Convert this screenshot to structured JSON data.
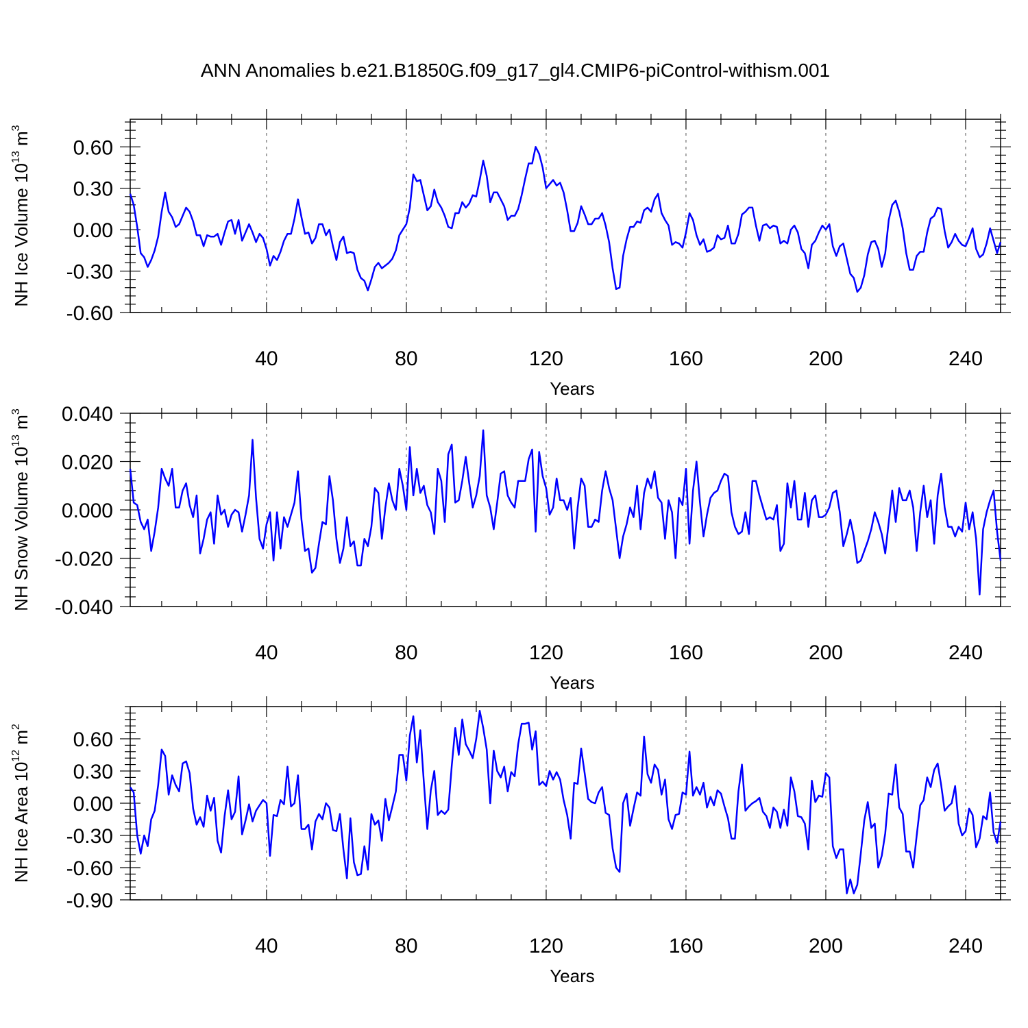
{
  "title": "ANN Anomalies b.e21.B1850G.f09_g17_gl4.CMIP6-piControl-withism.001",
  "line_color": "#0000ff",
  "chart_data": [
    {
      "type": "line",
      "ylabel": "NH Ice Volume 10",
      "ylabel_exp": "13",
      "ylabel_unit": " m",
      "ylabel_unit_exp": "3",
      "xlabel": "Years",
      "xlim": [
        1,
        250
      ],
      "ylim": [
        -0.6,
        0.8
      ],
      "xticks": [
        40,
        80,
        120,
        160,
        200,
        240
      ],
      "xtick_labels": [
        "40",
        "80",
        "120",
        "160",
        "200",
        "240"
      ],
      "yticks": [
        -0.6,
        -0.3,
        0.0,
        0.3,
        0.6
      ],
      "ytick_labels": [
        "-0.60",
        "-0.30",
        "0.00",
        "0.30",
        "0.60"
      ],
      "grid": "dashed vertical lines at x ticks",
      "series": [
        {
          "values": [
            0.26,
            0.18,
            0.02,
            -0.17,
            -0.2,
            -0.27,
            -0.22,
            -0.15,
            -0.05,
            0.13,
            0.27,
            0.13,
            0.09,
            0.02,
            0.04,
            0.1,
            0.16,
            0.13,
            0.06,
            -0.04,
            -0.04,
            -0.12,
            -0.04,
            -0.05,
            -0.05,
            -0.03,
            -0.11,
            -0.02,
            0.06,
            0.07,
            -0.03,
            0.07,
            -0.08,
            -0.02,
            0.04,
            -0.02,
            -0.09,
            -0.03,
            -0.06,
            -0.14,
            -0.26,
            -0.19,
            -0.22,
            -0.16,
            -0.08,
            -0.03,
            -0.03,
            0.08,
            0.22,
            0.09,
            -0.03,
            -0.02,
            -0.1,
            -0.06,
            0.04,
            0.04,
            -0.04,
            0.0,
            -0.12,
            -0.22,
            -0.09,
            -0.05,
            -0.17,
            -0.16,
            -0.17,
            -0.29,
            -0.35,
            -0.37,
            -0.44,
            -0.36,
            -0.27,
            -0.24,
            -0.28,
            -0.26,
            -0.24,
            -0.21,
            -0.15,
            -0.04,
            0.0,
            0.04,
            0.16,
            0.4,
            0.35,
            0.36,
            0.25,
            0.14,
            0.17,
            0.29,
            0.2,
            0.16,
            0.1,
            0.02,
            0.01,
            0.12,
            0.12,
            0.2,
            0.16,
            0.19,
            0.25,
            0.24,
            0.36,
            0.5,
            0.39,
            0.2,
            0.27,
            0.27,
            0.22,
            0.17,
            0.07,
            0.1,
            0.1,
            0.15,
            0.25,
            0.37,
            0.48,
            0.48,
            0.6,
            0.55,
            0.45,
            0.3,
            0.33,
            0.36,
            0.32,
            0.34,
            0.27,
            0.14,
            -0.01,
            -0.01,
            0.05,
            0.17,
            0.11,
            0.04,
            0.04,
            0.08,
            0.08,
            0.12,
            0.03,
            -0.09,
            -0.28,
            -0.43,
            -0.42,
            -0.19,
            -0.07,
            0.02,
            0.02,
            0.06,
            0.05,
            0.14,
            0.16,
            0.13,
            0.22,
            0.26,
            0.12,
            0.07,
            0.03,
            -0.11,
            -0.09,
            -0.1,
            -0.13,
            -0.02,
            0.12,
            0.07,
            -0.04,
            -0.11,
            -0.07,
            -0.16,
            -0.15,
            -0.13,
            -0.04,
            -0.07,
            -0.06,
            0.03,
            -0.1,
            -0.1,
            -0.03,
            0.11,
            0.13,
            0.16,
            0.16,
            0.03,
            -0.08,
            0.03,
            0.04,
            0.01,
            0.03,
            0.02,
            -0.1,
            -0.08,
            -0.1,
            0.0,
            0.03,
            -0.02,
            -0.14,
            -0.17,
            -0.28,
            -0.11,
            -0.08,
            -0.02,
            0.03,
            0.0,
            0.04,
            -0.12,
            -0.19,
            -0.12,
            -0.1,
            -0.21,
            -0.32,
            -0.35,
            -0.45,
            -0.42,
            -0.33,
            -0.18,
            -0.09,
            -0.08,
            -0.14,
            -0.27,
            -0.17,
            0.07,
            0.18,
            0.21,
            0.13,
            0.01,
            -0.17,
            -0.29,
            -0.29,
            -0.19,
            -0.16,
            -0.16,
            -0.02,
            0.08,
            0.1,
            0.16,
            0.15,
            -0.01,
            -0.13,
            -0.09,
            -0.03,
            -0.08,
            -0.11,
            -0.12,
            -0.06,
            0.01,
            -0.14,
            -0.2,
            -0.18,
            -0.1,
            0.01,
            -0.08,
            -0.17,
            -0.09
          ]
        }
      ]
    },
    {
      "type": "line",
      "ylabel": "NH Snow Volume 10",
      "ylabel_exp": "13",
      "ylabel_unit": " m",
      "ylabel_unit_exp": "3",
      "xlabel": "Years",
      "xlim": [
        1,
        250
      ],
      "ylim": [
        -0.04,
        0.04
      ],
      "xticks": [
        40,
        80,
        120,
        160,
        200,
        240
      ],
      "xtick_labels": [
        "40",
        "80",
        "120",
        "160",
        "200",
        "240"
      ],
      "yticks": [
        -0.04,
        -0.02,
        0.0,
        0.02,
        0.04
      ],
      "ytick_labels": [
        "-0.040",
        "-0.020",
        "0.000",
        "0.020",
        "0.040"
      ],
      "grid": "dashed vertical lines at x ticks",
      "series": [
        {
          "values": [
            0.017,
            0.003,
            0.002,
            -0.005,
            -0.008,
            -0.004,
            -0.017,
            -0.009,
            0.001,
            0.017,
            0.013,
            0.01,
            0.017,
            0.001,
            0.001,
            0.008,
            0.011,
            0.002,
            -0.003,
            0.006,
            -0.018,
            -0.012,
            -0.004,
            -0.001,
            -0.014,
            0.006,
            -0.002,
            0.0,
            -0.007,
            -0.002,
            0.0,
            -0.001,
            -0.009,
            -0.002,
            0.006,
            0.029,
            0.005,
            -0.012,
            -0.016,
            -0.006,
            -0.001,
            -0.021,
            -0.001,
            -0.016,
            -0.003,
            -0.007,
            -0.002,
            0.003,
            0.016,
            -0.004,
            -0.017,
            -0.016,
            -0.026,
            -0.024,
            -0.014,
            -0.005,
            -0.006,
            0.014,
            0.004,
            -0.012,
            -0.022,
            -0.016,
            -0.003,
            -0.015,
            -0.013,
            -0.023,
            -0.023,
            -0.012,
            -0.015,
            -0.007,
            0.009,
            0.007,
            -0.012,
            0.001,
            0.011,
            0.004,
            0.0,
            0.017,
            0.01,
            0.0,
            0.026,
            0.006,
            0.017,
            0.007,
            0.01,
            0.002,
            -0.001,
            -0.01,
            0.017,
            0.012,
            -0.005,
            0.023,
            0.027,
            0.003,
            0.004,
            0.012,
            0.022,
            0.011,
            0.001,
            0.006,
            0.014,
            0.033,
            0.006,
            0.001,
            -0.008,
            0.003,
            0.015,
            0.016,
            0.006,
            0.003,
            0.001,
            0.012,
            0.012,
            0.012,
            0.021,
            0.025,
            -0.009,
            0.024,
            0.014,
            0.009,
            -0.002,
            0.001,
            0.013,
            0.004,
            0.004,
            0.0,
            0.005,
            -0.016,
            0.001,
            0.013,
            0.01,
            -0.007,
            -0.007,
            -0.004,
            -0.005,
            0.008,
            0.016,
            0.009,
            0.004,
            -0.008,
            -0.02,
            -0.011,
            -0.006,
            0.001,
            -0.003,
            0.01,
            -0.008,
            0.007,
            0.013,
            0.009,
            0.016,
            0.005,
            0.003,
            -0.012,
            0.004,
            -0.001,
            -0.02,
            0.005,
            0.002,
            0.017,
            -0.014,
            0.008,
            0.02,
            0.003,
            -0.011,
            -0.002,
            0.005,
            0.007,
            0.008,
            0.012,
            0.015,
            0.014,
            -0.001,
            -0.007,
            -0.01,
            -0.009,
            -0.001,
            -0.01,
            0.012,
            0.012,
            0.006,
            0.001,
            -0.004,
            -0.003,
            -0.004,
            0.002,
            -0.017,
            -0.014,
            0.011,
            0.001,
            0.012,
            -0.004,
            -0.004,
            0.007,
            -0.007,
            0.004,
            0.006,
            -0.003,
            -0.003,
            -0.002,
            0.001,
            0.007,
            0.008,
            -0.001,
            -0.015,
            -0.01,
            -0.004,
            -0.011,
            -0.022,
            -0.021,
            -0.017,
            -0.013,
            -0.008,
            -0.001,
            -0.005,
            -0.01,
            -0.018,
            -0.005,
            0.008,
            -0.005,
            0.009,
            0.004,
            0.004,
            0.008,
            0.001,
            -0.017,
            -0.001,
            0.01,
            -0.003,
            0.004,
            -0.014,
            0.006,
            0.015,
            0.001,
            -0.007,
            -0.007,
            -0.011,
            -0.007,
            -0.009,
            0.003,
            -0.008,
            -0.001,
            -0.012,
            -0.035,
            -0.008,
            -0.001,
            0.004,
            0.008,
            -0.009,
            -0.021
          ]
        }
      ]
    },
    {
      "type": "line",
      "ylabel": "NH Ice Area 10",
      "ylabel_exp": "12",
      "ylabel_unit": " m",
      "ylabel_unit_exp": "2",
      "xlabel": "Years",
      "xlim": [
        1,
        250
      ],
      "ylim": [
        -0.9,
        0.9
      ],
      "xticks": [
        40,
        80,
        120,
        160,
        200,
        240
      ],
      "xtick_labels": [
        "40",
        "80",
        "120",
        "160",
        "200",
        "240"
      ],
      "yticks": [
        -0.9,
        -0.6,
        -0.3,
        0.0,
        0.3,
        0.6
      ],
      "ytick_labels": [
        "-0.90",
        "-0.60",
        "-0.30",
        "0.00",
        "0.30",
        "0.60"
      ],
      "grid": "dashed vertical lines at x ticks",
      "series": [
        {
          "values": [
            0.15,
            0.1,
            -0.3,
            -0.47,
            -0.3,
            -0.4,
            -0.15,
            -0.07,
            0.17,
            0.5,
            0.44,
            0.08,
            0.26,
            0.17,
            0.11,
            0.37,
            0.39,
            0.28,
            -0.05,
            -0.2,
            -0.13,
            -0.22,
            0.07,
            -0.07,
            0.05,
            -0.35,
            -0.46,
            -0.12,
            0.12,
            -0.15,
            -0.08,
            0.25,
            -0.29,
            -0.16,
            -0.01,
            -0.17,
            -0.07,
            -0.02,
            0.03,
            0.0,
            -0.49,
            -0.11,
            -0.12,
            0.03,
            -0.01,
            0.34,
            -0.03,
            0.0,
            0.26,
            -0.24,
            -0.24,
            -0.2,
            -0.43,
            -0.17,
            -0.1,
            -0.15,
            0.0,
            -0.04,
            -0.25,
            -0.26,
            -0.1,
            -0.43,
            -0.7,
            -0.14,
            -0.55,
            -0.67,
            -0.66,
            -0.4,
            -0.62,
            -0.1,
            -0.2,
            -0.16,
            -0.35,
            0.04,
            -0.16,
            -0.03,
            0.11,
            0.45,
            0.45,
            0.21,
            0.63,
            0.81,
            0.38,
            0.68,
            0.2,
            -0.24,
            0.12,
            0.3,
            -0.11,
            -0.07,
            -0.1,
            -0.06,
            0.35,
            0.7,
            0.45,
            0.78,
            0.55,
            0.49,
            0.42,
            0.6,
            0.86,
            0.7,
            0.5,
            0.0,
            0.49,
            0.3,
            0.24,
            0.34,
            0.11,
            0.29,
            0.25,
            0.55,
            0.74,
            0.74,
            0.75,
            0.5,
            0.67,
            0.17,
            0.2,
            0.16,
            0.3,
            0.22,
            0.29,
            0.22,
            0.03,
            -0.11,
            -0.33,
            0.19,
            0.18,
            0.51,
            0.28,
            0.04,
            0.01,
            0.0,
            0.1,
            0.15,
            -0.09,
            -0.11,
            -0.42,
            -0.6,
            -0.64,
            0.0,
            0.09,
            -0.21,
            -0.05,
            0.1,
            0.07,
            0.62,
            0.27,
            0.19,
            0.36,
            0.31,
            0.08,
            0.22,
            -0.15,
            -0.24,
            -0.11,
            -0.1,
            0.1,
            0.08,
            0.48,
            0.07,
            0.15,
            0.08,
            0.19,
            -0.04,
            0.06,
            -0.02,
            0.12,
            0.09,
            -0.03,
            -0.14,
            -0.33,
            -0.33,
            0.11,
            0.36,
            -0.07,
            -0.03,
            0.0,
            0.02,
            0.05,
            -0.08,
            -0.12,
            -0.23,
            -0.04,
            -0.08,
            -0.23,
            -0.06,
            -0.21,
            0.24,
            0.11,
            -0.12,
            -0.13,
            -0.19,
            -0.43,
            0.21,
            0.01,
            0.07,
            0.06,
            0.28,
            0.24,
            -0.4,
            -0.51,
            -0.43,
            -0.43,
            -0.84,
            -0.71,
            -0.84,
            -0.76,
            -0.47,
            -0.16,
            0.01,
            -0.23,
            -0.19,
            -0.6,
            -0.49,
            -0.28,
            0.09,
            0.08,
            0.36,
            -0.04,
            -0.1,
            -0.45,
            -0.45,
            -0.6,
            -0.3,
            -0.02,
            0.03,
            0.24,
            0.15,
            0.31,
            0.37,
            0.17,
            -0.07,
            -0.03,
            0.0,
            0.16,
            -0.19,
            -0.3,
            -0.26,
            -0.05,
            -0.11,
            -0.41,
            -0.33,
            -0.12,
            -0.15,
            0.1,
            -0.27,
            -0.37,
            -0.17
          ]
        }
      ]
    }
  ]
}
